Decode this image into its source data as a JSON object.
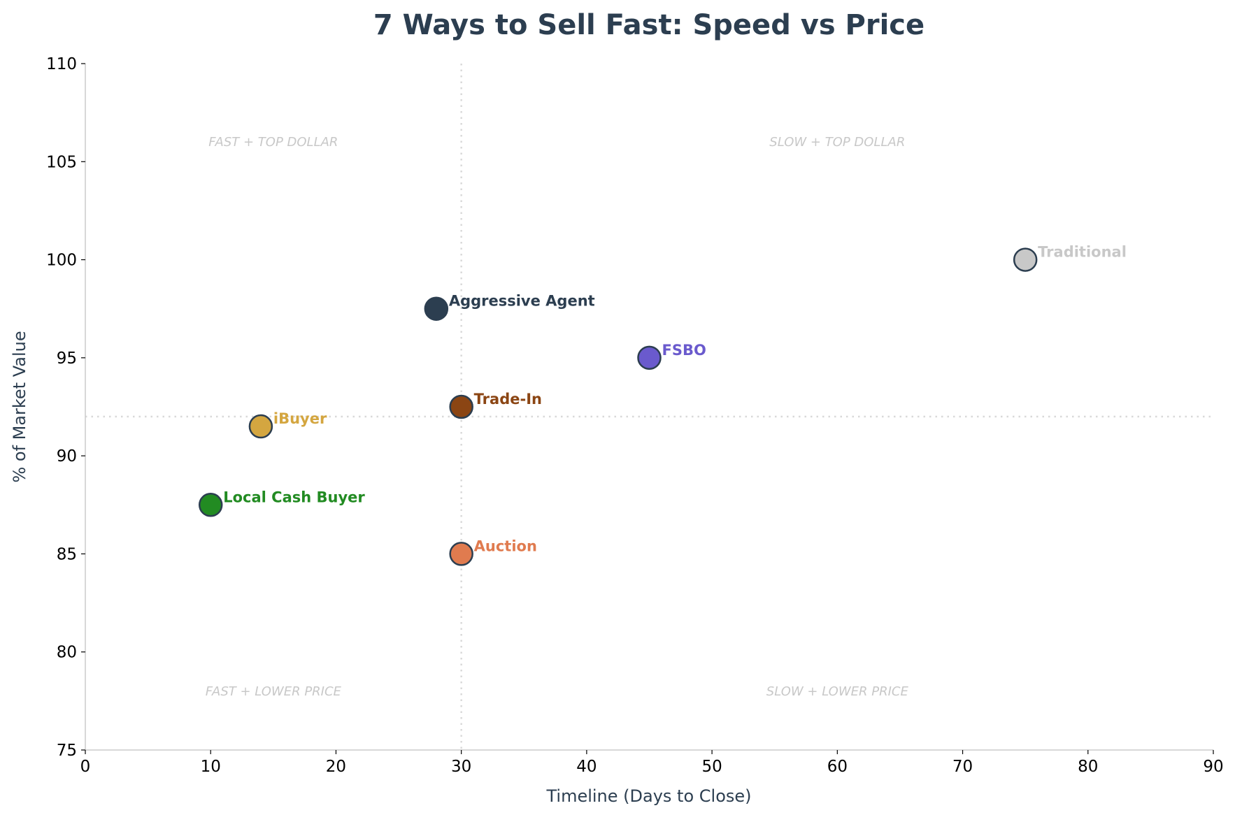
{
  "chart_data": {
    "type": "scatter",
    "title": "7 Ways to Sell Fast: Speed vs Price",
    "xlabel": "Timeline (Days to Close)",
    "ylabel": "% of Market Value",
    "xlim": [
      0,
      90
    ],
    "ylim": [
      75,
      110
    ],
    "xticks": [
      0,
      10,
      20,
      30,
      40,
      50,
      60,
      70,
      80,
      90
    ],
    "yticks": [
      75,
      80,
      85,
      90,
      95,
      100,
      105,
      110
    ],
    "grid": false,
    "reference_lines": {
      "x": 30,
      "y": 92
    },
    "quadrant_labels": [
      {
        "text": "FAST + TOP DOLLAR",
        "x": 15,
        "y": 106
      },
      {
        "text": "SLOW + TOP DOLLAR",
        "x": 60,
        "y": 106
      },
      {
        "text": "FAST + LOWER PRICE",
        "x": 15,
        "y": 78
      },
      {
        "text": "SLOW + LOWER PRICE",
        "x": 60,
        "y": 78
      }
    ],
    "points": [
      {
        "name": "Local Cash Buyer",
        "x": 10,
        "y": 87.5,
        "color": "#228b22"
      },
      {
        "name": "iBuyer",
        "x": 14,
        "y": 91.5,
        "color": "#d4a640"
      },
      {
        "name": "Aggressive Agent",
        "x": 28,
        "y": 97.5,
        "color": "#2c3e50"
      },
      {
        "name": "Trade-In",
        "x": 30,
        "y": 92.5,
        "color": "#8b4513"
      },
      {
        "name": "Auction",
        "x": 30,
        "y": 85,
        "color": "#e07b4f"
      },
      {
        "name": "FSBO",
        "x": 45,
        "y": 95,
        "color": "#6a5acd"
      },
      {
        "name": "Traditional",
        "x": 75,
        "y": 100,
        "color": "#c8c8c8"
      }
    ]
  }
}
